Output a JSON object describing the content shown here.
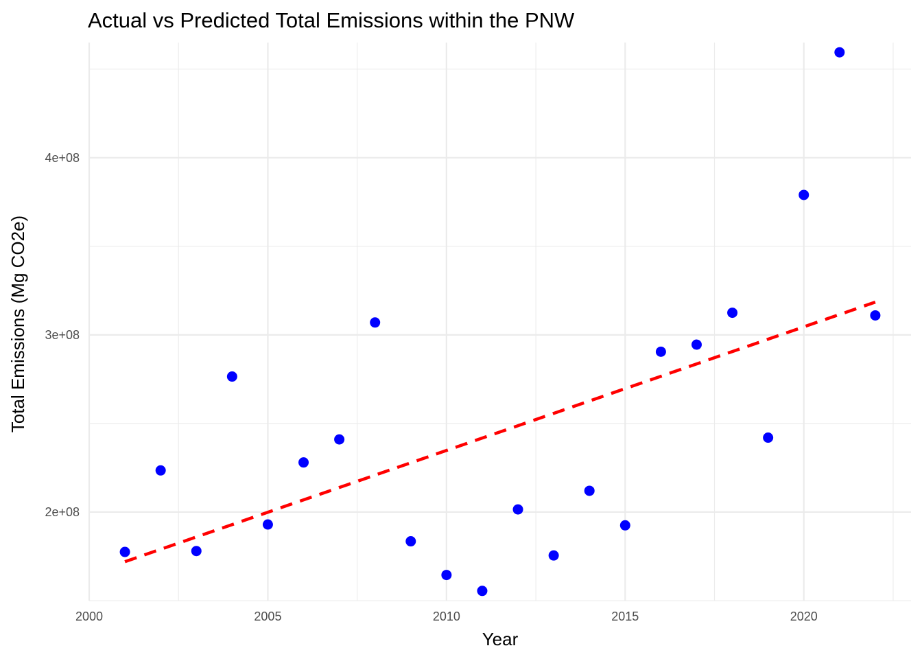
{
  "chart_data": {
    "type": "scatter",
    "title": "Actual vs Predicted Total Emissions within the PNW",
    "xlabel": "Year",
    "ylabel": "Total Emissions (Mg CO2e)",
    "xlim": [
      2000,
      2023
    ],
    "ylim": [
      150000000,
      465000000
    ],
    "x_ticks": [
      2000,
      2005,
      2010,
      2015,
      2020
    ],
    "x_tick_labels": [
      "2000",
      "2005",
      "2010",
      "2015",
      "2020"
    ],
    "y_ticks": [
      200000000,
      300000000,
      400000000
    ],
    "y_tick_labels": [
      "2e+08",
      "3e+08",
      "4e+08"
    ],
    "grid": true,
    "series": [
      {
        "kind": "points",
        "color": "#0000ff",
        "x": [
          2001,
          2002,
          2003,
          2004,
          2005,
          2006,
          2007,
          2008,
          2009,
          2010,
          2011,
          2012,
          2013,
          2014,
          2015,
          2016,
          2017,
          2018,
          2019,
          2020,
          2021,
          2022
        ],
        "y": [
          177500000,
          223500000,
          178000000,
          276500000,
          193000000,
          228000000,
          241000000,
          307000000,
          183500000,
          164500000,
          155500000,
          201500000,
          175500000,
          212000000,
          192500000,
          290500000,
          294500000,
          312500000,
          242000000,
          379000000,
          459500000,
          311000000
        ]
      },
      {
        "kind": "trend",
        "color": "#ff0000",
        "x": [
          2001,
          2022
        ],
        "y": [
          172000000,
          318500000
        ]
      }
    ]
  }
}
